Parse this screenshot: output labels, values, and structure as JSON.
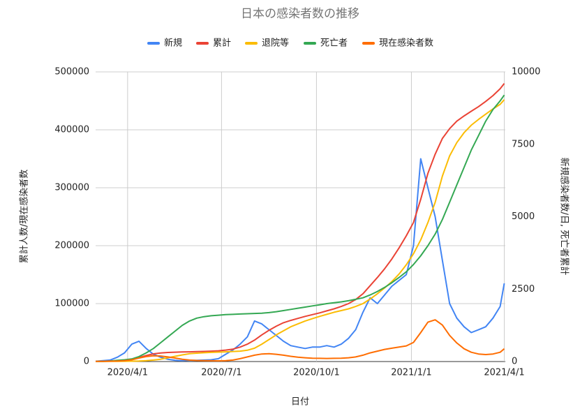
{
  "chart_data": {
    "type": "line",
    "title": "日本の感染者数の推移",
    "xlabel": "日付",
    "ylabel": "累計人数/現在感染者数",
    "y2label": "新規感染者数/日, 死亡者累計",
    "x": [
      "2020/3/1",
      "2020/3/8",
      "2020/3/15",
      "2020/3/22",
      "2020/3/29",
      "2020/4/5",
      "2020/4/12",
      "2020/4/19",
      "2020/4/26",
      "2020/5/3",
      "2020/5/10",
      "2020/5/17",
      "2020/5/24",
      "2020/5/31",
      "2020/6/7",
      "2020/6/14",
      "2020/6/21",
      "2020/6/28",
      "2020/7/5",
      "2020/7/12",
      "2020/7/19",
      "2020/7/26",
      "2020/8/2",
      "2020/8/9",
      "2020/8/16",
      "2020/8/23",
      "2020/8/30",
      "2020/9/6",
      "2020/9/13",
      "2020/9/20",
      "2020/9/27",
      "2020/10/4",
      "2020/10/11",
      "2020/10/18",
      "2020/10/25",
      "2020/11/1",
      "2020/11/8",
      "2020/11/15",
      "2020/11/22",
      "2020/11/29",
      "2020/12/6",
      "2020/12/13",
      "2020/12/20",
      "2020/12/27",
      "2021/1/3",
      "2021/1/10",
      "2021/1/17",
      "2021/1/24",
      "2021/1/31",
      "2021/2/7",
      "2021/2/14",
      "2021/2/21",
      "2021/2/28",
      "2021/3/7",
      "2021/3/14",
      "2021/3/21",
      "2021/3/28",
      "2021/4/1"
    ],
    "xlim": [
      "2020/3/1",
      "2021/4/2"
    ],
    "xticks": [
      "2020/4/1",
      "2020/7/1",
      "2020/10/1",
      "2021/1/1",
      "2021/4/1"
    ],
    "ylim": [
      0,
      500000
    ],
    "yticks": [
      0,
      100000,
      200000,
      300000,
      400000,
      500000
    ],
    "y2lim": [
      0,
      10000
    ],
    "y2ticks": [
      0,
      2500,
      5000,
      7500,
      10000
    ],
    "grid": true,
    "legend": "top",
    "series": [
      {
        "name": "新規",
        "color": "#4285f4",
        "axis": "y2",
        "values": [
          10,
          30,
          50,
          150,
          300,
          600,
          700,
          450,
          250,
          150,
          80,
          40,
          30,
          40,
          40,
          50,
          60,
          100,
          250,
          400,
          600,
          850,
          1400,
          1300,
          1100,
          900,
          700,
          550,
          500,
          450,
          500,
          500,
          550,
          500,
          600,
          800,
          1100,
          1700,
          2200,
          2000,
          2300,
          2600,
          2800,
          3000,
          4000,
          7000,
          6000,
          5000,
          3500,
          2000,
          1500,
          1200,
          1000,
          1100,
          1200,
          1500,
          1900,
          2700
        ]
      },
      {
        "name": "累計",
        "color": "#ea4335",
        "values": [
          240,
          500,
          800,
          1100,
          1900,
          3600,
          7000,
          10500,
          13200,
          14800,
          15700,
          16200,
          16500,
          16800,
          17100,
          17500,
          17900,
          18600,
          19800,
          21500,
          25000,
          30000,
          37000,
          46000,
          54000,
          61000,
          67000,
          71000,
          74500,
          78000,
          81000,
          84000,
          87500,
          91000,
          95000,
          100000,
          107000,
          117000,
          131000,
          145000,
          160000,
          177000,
          196000,
          217000,
          240000,
          280000,
          325000,
          358000,
          385000,
          402000,
          415000,
          424000,
          432000,
          440000,
          449000,
          459000,
          471000,
          480000
        ]
      },
      {
        "name": "退院等",
        "color": "#fbbc04",
        "values": [
          40,
          100,
          200,
          300,
          450,
          600,
          900,
          1500,
          2500,
          4000,
          6500,
          9000,
          11500,
          13500,
          14500,
          15200,
          15800,
          16300,
          16800,
          17300,
          18000,
          19500,
          23000,
          30000,
          38000,
          46000,
          53000,
          60000,
          65000,
          70000,
          74000,
          78000,
          81500,
          85000,
          88000,
          91000,
          95000,
          100000,
          108000,
          117000,
          127000,
          138000,
          151000,
          167000,
          186000,
          210000,
          240000,
          275000,
          320000,
          355000,
          378000,
          395000,
          408000,
          418000,
          427000,
          436000,
          444000,
          452000
        ]
      },
      {
        "name": "死亡者",
        "color": "#34a853",
        "axis": "y2",
        "values": [
          5,
          7,
          20,
          40,
          60,
          90,
          170,
          300,
          450,
          650,
          850,
          1050,
          1250,
          1400,
          1500,
          1550,
          1580,
          1600,
          1620,
          1630,
          1640,
          1650,
          1660,
          1670,
          1690,
          1720,
          1760,
          1800,
          1840,
          1880,
          1920,
          1960,
          2000,
          2030,
          2060,
          2100,
          2150,
          2200,
          2300,
          2420,
          2560,
          2720,
          2900,
          3100,
          3350,
          3650,
          4000,
          4400,
          4900,
          5500,
          6100,
          6700,
          7300,
          7800,
          8300,
          8700,
          9000,
          9200
        ]
      },
      {
        "name": "現在感染者数",
        "color": "#ff6d01",
        "values": [
          200,
          400,
          600,
          800,
          1400,
          3000,
          6000,
          8500,
          10000,
          9500,
          8000,
          6000,
          4000,
          2500,
          1800,
          1500,
          1300,
          1200,
          1500,
          2500,
          5000,
          8000,
          11000,
          13000,
          13500,
          12500,
          11000,
          9000,
          7500,
          6500,
          5800,
          5500,
          5300,
          5500,
          5800,
          6500,
          8000,
          11000,
          15000,
          18000,
          21000,
          23000,
          25000,
          27000,
          33000,
          50000,
          68000,
          72000,
          63000,
          45000,
          32000,
          22000,
          16000,
          13000,
          12000,
          13000,
          16000,
          22000
        ]
      }
    ]
  }
}
